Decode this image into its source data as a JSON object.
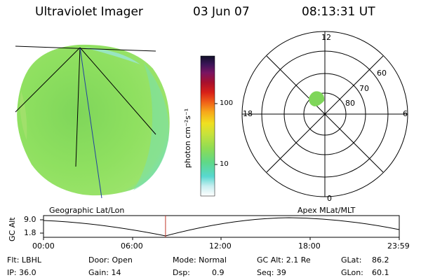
{
  "header": {
    "instrument": "Ultraviolet Imager",
    "date": "03 Jun 07",
    "time": "08:13:31 UT"
  },
  "colorbar": {
    "unit_label": "photon cm⁻²s⁻¹",
    "ticks": [
      "100",
      "10"
    ]
  },
  "polar_plot": {
    "hour_labels": {
      "top": "12",
      "left": "18",
      "right": "6",
      "bottom": "0"
    },
    "lat_labels": [
      "60",
      "70",
      "80"
    ]
  },
  "orbit_strip": {
    "left_title": "Geographic Lat/Lon",
    "right_title": "Apex MLat/MLT",
    "ylabel": "GC Alt",
    "ymax": "9.0",
    "ymin": "1.8",
    "x_ticks": [
      "00:00",
      "06:00",
      "12:00",
      "18:00",
      "23:59"
    ],
    "current_time_fraction": 0.343
  },
  "status": {
    "filter": "Flt: LBHL",
    "ip": "IP: 36.0",
    "door": "Door: Open",
    "gain": "Gain: 14",
    "mode": "Mode: Normal",
    "dsp_label": "Dsp:",
    "dsp_value": "0.9",
    "gc_alt": "GC Alt: 2.1 Re",
    "seq": "Seq: 39",
    "glat_label": "GLat:",
    "glat_value": "86.2",
    "glon_label": "GLon:",
    "glon_value": "60.1"
  },
  "colors": {
    "image_green": "#8ee05a",
    "image_cyan": "#6fe0c8",
    "marker": "#c0392b"
  }
}
